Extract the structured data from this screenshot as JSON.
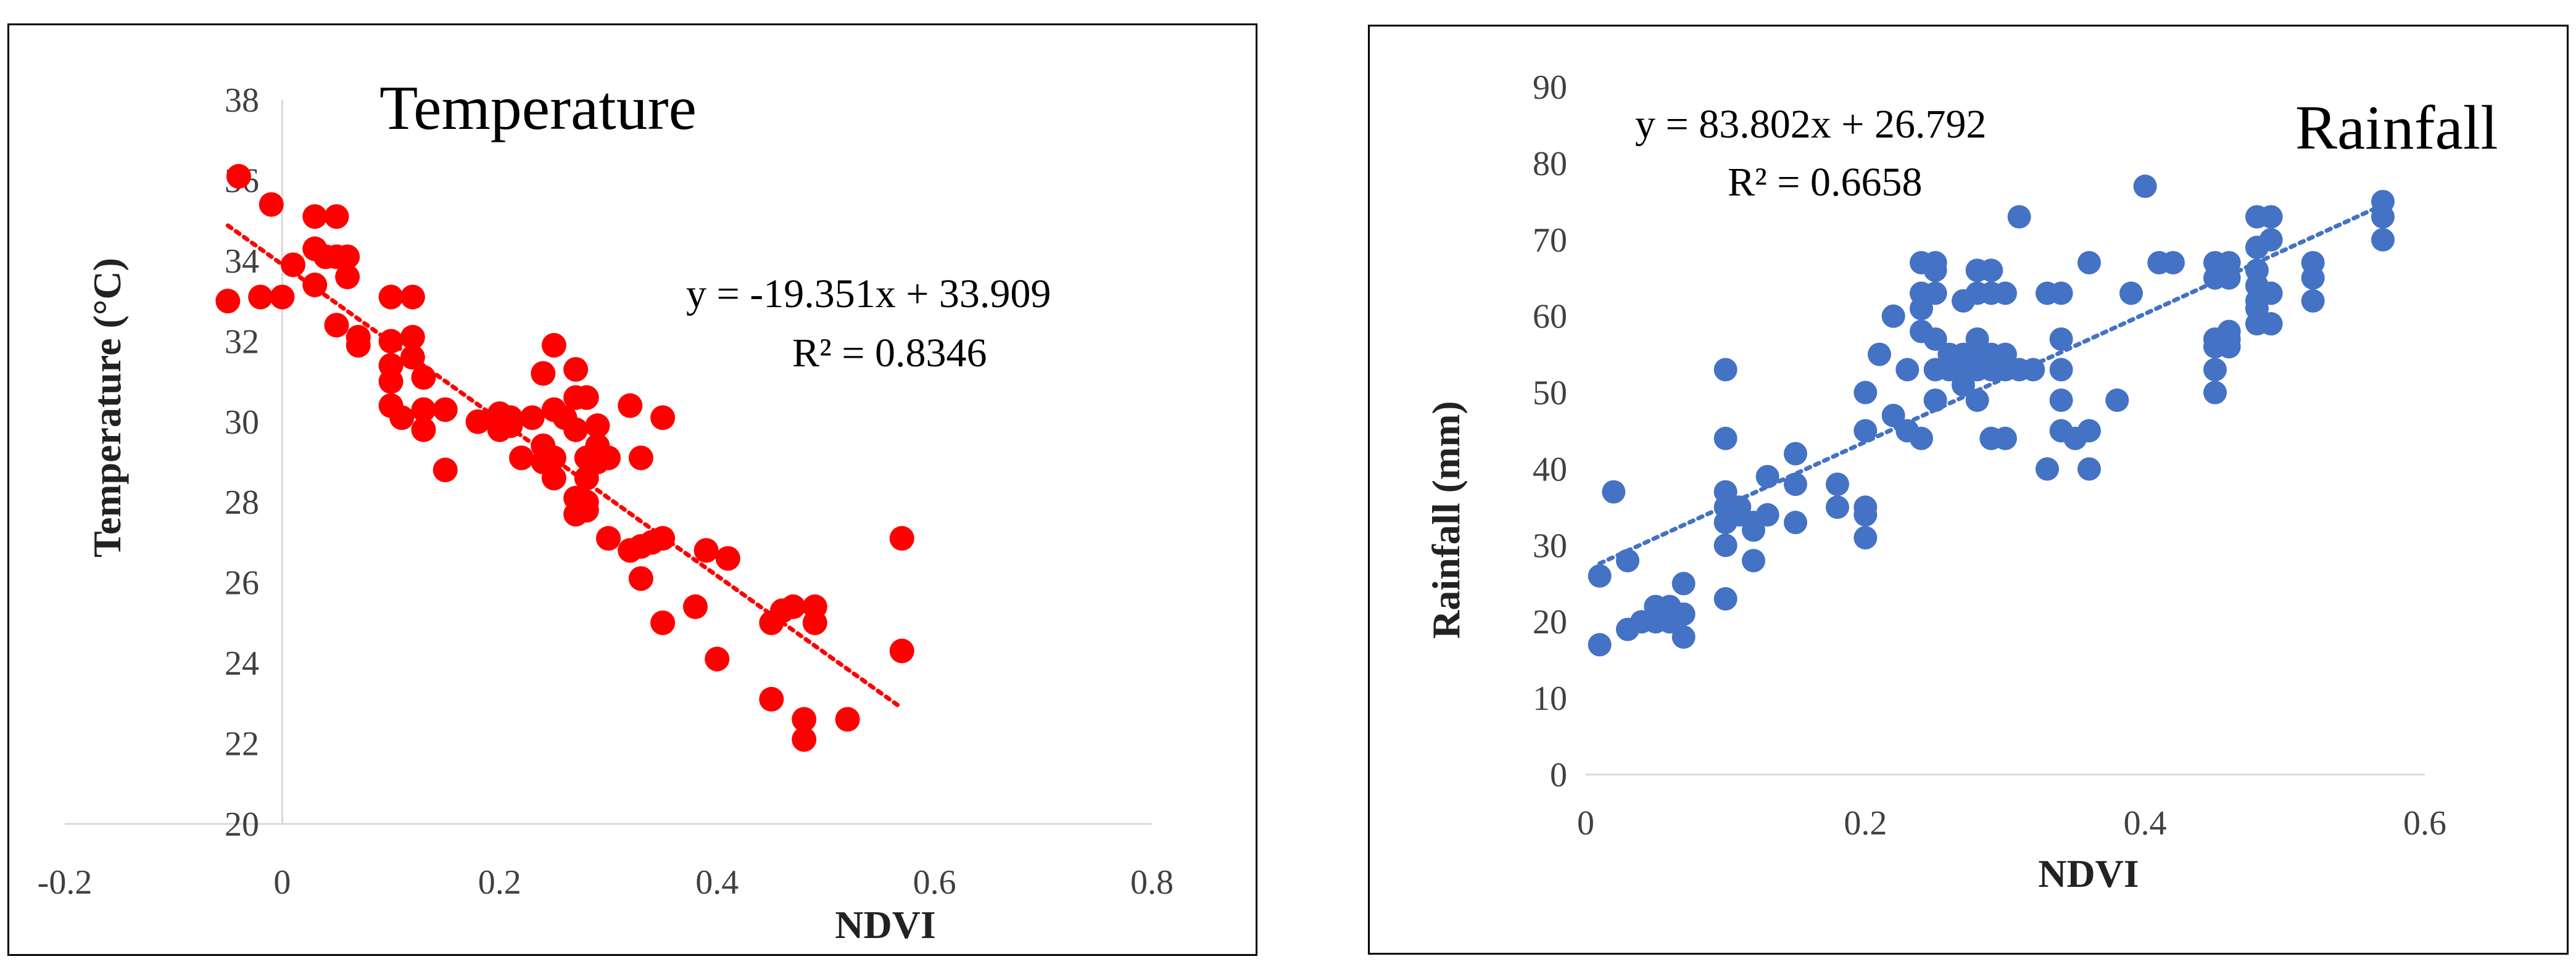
{
  "chart_data": [
    {
      "type": "scatter",
      "title": "Temperature",
      "xlabel": "NDVI",
      "ylabel": "Temperature (°C)",
      "xlim": [
        -0.2,
        0.8
      ],
      "ylim": [
        20,
        38
      ],
      "xticks": [
        -0.2,
        0,
        0.2,
        0.4,
        0.6,
        0.8
      ],
      "yticks": [
        20,
        22,
        24,
        26,
        28,
        30,
        32,
        34,
        36,
        38
      ],
      "xtick_labels": [
        "-0.2",
        "0",
        "0.2",
        "0.4",
        "0.6",
        "0.8"
      ],
      "ytick_labels": [
        "20",
        "22",
        "24",
        "26",
        "28",
        "30",
        "32",
        "34",
        "36",
        "38"
      ],
      "grid": false,
      "marker_color": "#ff0000",
      "trendline": {
        "slope": -19.351,
        "intercept": 33.909,
        "x_range": [
          -0.05,
          0.57
        ],
        "color": "#ff0000",
        "style": "dotted"
      },
      "equation": "y = -19.351x + 33.909",
      "r_squared": "R² = 0.8346",
      "points": [
        [
          -0.05,
          33.0
        ],
        [
          -0.04,
          36.1
        ],
        [
          -0.02,
          33.1
        ],
        [
          -0.01,
          35.4
        ],
        [
          0.0,
          33.1
        ],
        [
          0.01,
          33.9
        ],
        [
          0.03,
          34.3
        ],
        [
          0.03,
          35.1
        ],
        [
          0.03,
          33.4
        ],
        [
          0.04,
          34.1
        ],
        [
          0.05,
          35.1
        ],
        [
          0.05,
          34.1
        ],
        [
          0.05,
          32.4
        ],
        [
          0.06,
          34.1
        ],
        [
          0.06,
          33.6
        ],
        [
          0.07,
          32.1
        ],
        [
          0.07,
          31.9
        ],
        [
          0.1,
          33.1
        ],
        [
          0.1,
          32.0
        ],
        [
          0.1,
          31.0
        ],
        [
          0.1,
          31.4
        ],
        [
          0.1,
          30.4
        ],
        [
          0.11,
          30.1
        ],
        [
          0.12,
          33.1
        ],
        [
          0.12,
          32.1
        ],
        [
          0.12,
          31.6
        ],
        [
          0.13,
          31.1
        ],
        [
          0.13,
          30.3
        ],
        [
          0.13,
          29.8
        ],
        [
          0.15,
          30.3
        ],
        [
          0.15,
          28.8
        ],
        [
          0.18,
          30.0
        ],
        [
          0.2,
          30.2
        ],
        [
          0.2,
          29.8
        ],
        [
          0.21,
          30.1
        ],
        [
          0.21,
          29.9
        ],
        [
          0.22,
          29.1
        ],
        [
          0.23,
          30.1
        ],
        [
          0.24,
          31.2
        ],
        [
          0.24,
          29.4
        ],
        [
          0.24,
          29.0
        ],
        [
          0.25,
          31.9
        ],
        [
          0.25,
          30.3
        ],
        [
          0.25,
          29.1
        ],
        [
          0.25,
          28.6
        ],
        [
          0.26,
          30.1
        ],
        [
          0.27,
          31.3
        ],
        [
          0.27,
          30.6
        ],
        [
          0.27,
          29.8
        ],
        [
          0.27,
          28.1
        ],
        [
          0.27,
          27.7
        ],
        [
          0.28,
          30.6
        ],
        [
          0.28,
          29.1
        ],
        [
          0.28,
          28.6
        ],
        [
          0.28,
          28.0
        ],
        [
          0.28,
          27.8
        ],
        [
          0.29,
          29.9
        ],
        [
          0.29,
          29.4
        ],
        [
          0.29,
          29.0
        ],
        [
          0.3,
          29.1
        ],
        [
          0.3,
          27.1
        ],
        [
          0.32,
          30.4
        ],
        [
          0.32,
          26.8
        ],
        [
          0.33,
          29.1
        ],
        [
          0.33,
          26.9
        ],
        [
          0.33,
          26.1
        ],
        [
          0.34,
          27.0
        ],
        [
          0.35,
          30.1
        ],
        [
          0.35,
          27.1
        ],
        [
          0.35,
          25.0
        ],
        [
          0.38,
          25.4
        ],
        [
          0.39,
          26.8
        ],
        [
          0.4,
          24.1
        ],
        [
          0.41,
          26.6
        ],
        [
          0.45,
          25.0
        ],
        [
          0.45,
          23.1
        ],
        [
          0.46,
          25.3
        ],
        [
          0.47,
          25.4
        ],
        [
          0.48,
          22.6
        ],
        [
          0.48,
          22.1
        ],
        [
          0.49,
          25.4
        ],
        [
          0.49,
          25.0
        ],
        [
          0.52,
          22.6
        ],
        [
          0.57,
          27.1
        ],
        [
          0.57,
          24.3
        ]
      ]
    },
    {
      "type": "scatter",
      "title": "Rainfall",
      "xlabel": "NDVI",
      "ylabel": "Rainfall (mm)",
      "xlim": [
        0,
        0.6
      ],
      "ylim": [
        0,
        90
      ],
      "xticks": [
        0,
        0.2,
        0.4,
        0.6
      ],
      "yticks": [
        0,
        10,
        20,
        30,
        40,
        50,
        60,
        70,
        80,
        90
      ],
      "xtick_labels": [
        "0",
        "0.2",
        "0.4",
        "0.6"
      ],
      "ytick_labels": [
        "0",
        "10",
        "20",
        "30",
        "40",
        "50",
        "60",
        "70",
        "80",
        "90"
      ],
      "grid": false,
      "marker_color": "#4472c4",
      "trendline": {
        "slope": 83.802,
        "intercept": 26.792,
        "x_range": [
          0.01,
          0.57
        ],
        "color": "#4472c4",
        "style": "dotted"
      },
      "equation": "y = 83.802x + 26.792",
      "r_squared": "R² = 0.6658",
      "points": [
        [
          0.01,
          26
        ],
        [
          0.01,
          17
        ],
        [
          0.02,
          37
        ],
        [
          0.03,
          28
        ],
        [
          0.03,
          19
        ],
        [
          0.04,
          20
        ],
        [
          0.05,
          22
        ],
        [
          0.05,
          20
        ],
        [
          0.06,
          22
        ],
        [
          0.06,
          21
        ],
        [
          0.06,
          20
        ],
        [
          0.07,
          25
        ],
        [
          0.07,
          21
        ],
        [
          0.07,
          18
        ],
        [
          0.1,
          53
        ],
        [
          0.1,
          44
        ],
        [
          0.1,
          37
        ],
        [
          0.1,
          35
        ],
        [
          0.1,
          33
        ],
        [
          0.1,
          30
        ],
        [
          0.1,
          23
        ],
        [
          0.11,
          35
        ],
        [
          0.11,
          34
        ],
        [
          0.12,
          33
        ],
        [
          0.12,
          32
        ],
        [
          0.12,
          28
        ],
        [
          0.13,
          39
        ],
        [
          0.13,
          34
        ],
        [
          0.15,
          42
        ],
        [
          0.15,
          38
        ],
        [
          0.15,
          33
        ],
        [
          0.18,
          38
        ],
        [
          0.18,
          35
        ],
        [
          0.2,
          50
        ],
        [
          0.2,
          45
        ],
        [
          0.2,
          35
        ],
        [
          0.2,
          34
        ],
        [
          0.2,
          31
        ],
        [
          0.21,
          55
        ],
        [
          0.22,
          60
        ],
        [
          0.22,
          47
        ],
        [
          0.23,
          53
        ],
        [
          0.23,
          45
        ],
        [
          0.24,
          67
        ],
        [
          0.24,
          63
        ],
        [
          0.24,
          61
        ],
        [
          0.24,
          58
        ],
        [
          0.24,
          44
        ],
        [
          0.25,
          67
        ],
        [
          0.25,
          66
        ],
        [
          0.25,
          63
        ],
        [
          0.25,
          57
        ],
        [
          0.25,
          53
        ],
        [
          0.25,
          49
        ],
        [
          0.26,
          55
        ],
        [
          0.26,
          53
        ],
        [
          0.27,
          62
        ],
        [
          0.27,
          55
        ],
        [
          0.27,
          53
        ],
        [
          0.27,
          51
        ],
        [
          0.28,
          66
        ],
        [
          0.28,
          63
        ],
        [
          0.28,
          57
        ],
        [
          0.28,
          54
        ],
        [
          0.28,
          53
        ],
        [
          0.28,
          49
        ],
        [
          0.29,
          66
        ],
        [
          0.29,
          63
        ],
        [
          0.29,
          55
        ],
        [
          0.29,
          53
        ],
        [
          0.29,
          44
        ],
        [
          0.3,
          63
        ],
        [
          0.3,
          55
        ],
        [
          0.3,
          53
        ],
        [
          0.3,
          44
        ],
        [
          0.31,
          73
        ],
        [
          0.31,
          53
        ],
        [
          0.32,
          53
        ],
        [
          0.33,
          63
        ],
        [
          0.33,
          40
        ],
        [
          0.34,
          63
        ],
        [
          0.34,
          57
        ],
        [
          0.34,
          53
        ],
        [
          0.34,
          49
        ],
        [
          0.34,
          45
        ],
        [
          0.35,
          44
        ],
        [
          0.36,
          67
        ],
        [
          0.36,
          45
        ],
        [
          0.36,
          40
        ],
        [
          0.38,
          49
        ],
        [
          0.39,
          63
        ],
        [
          0.4,
          77
        ],
        [
          0.41,
          67
        ],
        [
          0.42,
          67
        ],
        [
          0.45,
          67
        ],
        [
          0.45,
          65
        ],
        [
          0.45,
          57
        ],
        [
          0.45,
          56
        ],
        [
          0.45,
          53
        ],
        [
          0.45,
          50
        ],
        [
          0.46,
          67
        ],
        [
          0.46,
          65
        ],
        [
          0.46,
          58
        ],
        [
          0.46,
          57
        ],
        [
          0.46,
          56
        ],
        [
          0.48,
          73
        ],
        [
          0.48,
          69
        ],
        [
          0.48,
          66
        ],
        [
          0.48,
          64
        ],
        [
          0.48,
          62
        ],
        [
          0.48,
          61
        ],
        [
          0.48,
          59
        ],
        [
          0.49,
          73
        ],
        [
          0.49,
          70
        ],
        [
          0.49,
          63
        ],
        [
          0.49,
          59
        ],
        [
          0.52,
          67
        ],
        [
          0.52,
          65
        ],
        [
          0.52,
          62
        ],
        [
          0.57,
          75
        ],
        [
          0.57,
          73
        ],
        [
          0.57,
          70
        ]
      ]
    }
  ]
}
